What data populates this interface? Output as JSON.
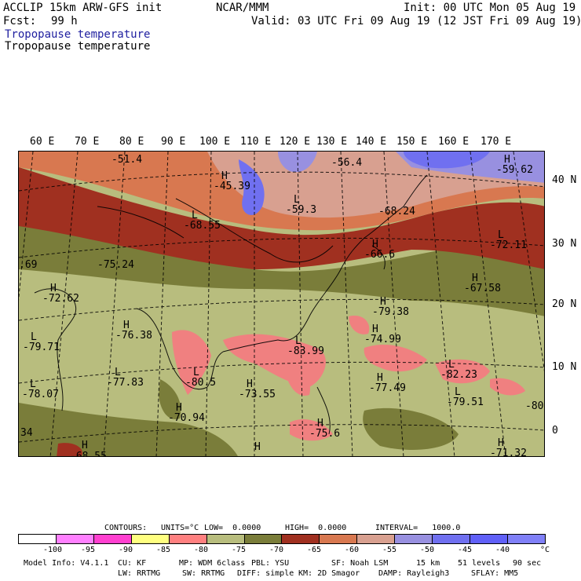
{
  "header": {
    "model": "ACCLIP 15km ARW-GFS init",
    "org": "NCAR/MMM",
    "init": "Init: 00 UTC Mon 05 Aug 19",
    "fcst_label": "Fcst:",
    "fcst_value": "99 h",
    "valid": "Valid: 03 UTC Fri 09 Aug 19 (12 JST Fri 09 Aug 19)",
    "field_title_1": "Tropopause temperature",
    "field_title_2": "Tropopause temperature"
  },
  "map": {
    "longitude_labels": [
      "60 E",
      "70 E",
      "80 E",
      "90 E",
      "100 E",
      "110 E",
      "120 E",
      "130 E",
      "140 E",
      "150 E",
      "160 E",
      "170 E"
    ],
    "latitude_labels": [
      "40 N",
      "30 N",
      "20 N",
      "10 N",
      "0"
    ],
    "extrema": [
      {
        "type": "",
        "value": "-51.4"
      },
      {
        "type": "",
        "value": "-56.4"
      },
      {
        "type": "H",
        "value": "-59.62"
      },
      {
        "type": "H",
        "value": "-45.39"
      },
      {
        "type": "L",
        "value": "-59.3"
      },
      {
        "type": "",
        "value": "-68.24"
      },
      {
        "type": "L",
        "value": "-68.55"
      },
      {
        "type": "L",
        "value": "-72.11"
      },
      {
        "type": "H",
        "value": "-66.6"
      },
      {
        "type": "",
        "value": ".69"
      },
      {
        "type": "",
        "value": "-75.24"
      },
      {
        "type": "H",
        "value": "-72.62"
      },
      {
        "type": "H",
        "value": "-79.38"
      },
      {
        "type": "H",
        "value": "-67.58"
      },
      {
        "type": "H",
        "value": "-76.38"
      },
      {
        "type": "L",
        "value": "-79.71"
      },
      {
        "type": "L",
        "value": "-83.99"
      },
      {
        "type": "H",
        "value": "-74.99"
      },
      {
        "type": "L",
        "value": "-82.23"
      },
      {
        "type": "L",
        "value": "-77.83"
      },
      {
        "type": "L",
        "value": "-80.5"
      },
      {
        "type": "H",
        "value": "-73.55"
      },
      {
        "type": "H",
        "value": "-77.49"
      },
      {
        "type": "L",
        "value": "-78.07"
      },
      {
        "type": "L",
        "value": "-79.51"
      },
      {
        "type": "",
        "value": "-80."
      },
      {
        "type": "H",
        "value": "-70.94"
      },
      {
        "type": "H",
        "value": "-75.6"
      },
      {
        "type": "",
        "value": "34"
      },
      {
        "type": "H",
        "value": ""
      },
      {
        "type": "H",
        "value": ""
      },
      {
        "type": "H",
        "value": "-71.32"
      },
      {
        "type": "",
        "value": "-68.55"
      }
    ]
  },
  "contours": {
    "label": "CONTOURS:",
    "units": "UNITS=°C",
    "low": "LOW=  0.0000",
    "high": "HIGH=  0.0000",
    "interval": "INTERVAL=   1000.0"
  },
  "colorbar": {
    "colors": [
      "#ffffff",
      "#ff80ff",
      "#ff40d0",
      "#ffff80",
      "#ff8080",
      "#b8bd7e",
      "#7a7d3a",
      "#a03020",
      "#d87850",
      "#d8a090",
      "#9890e0",
      "#7070f0",
      "#6060f8",
      "#8080f8"
    ],
    "ticks": [
      "-100",
      "-95",
      "-90",
      "-85",
      "-80",
      "-75",
      "-70",
      "-65",
      "-60",
      "-55",
      "-50",
      "-45",
      "-40"
    ],
    "unit": "°C"
  },
  "footer": {
    "line1": [
      "Model Info: V4.1.1",
      "CU: KF",
      "MP: WDM 6class",
      "PBL: YSU",
      "SF: Noah LSM",
      "15 km",
      "51 levels",
      "90 sec"
    ],
    "line2": [
      "LW: RRTMG",
      "SW: RRTMG",
      "DIFF: simple",
      "KM: 2D Smagor",
      "DAMP: Rayleigh3",
      "SFLAY: MM5"
    ]
  }
}
